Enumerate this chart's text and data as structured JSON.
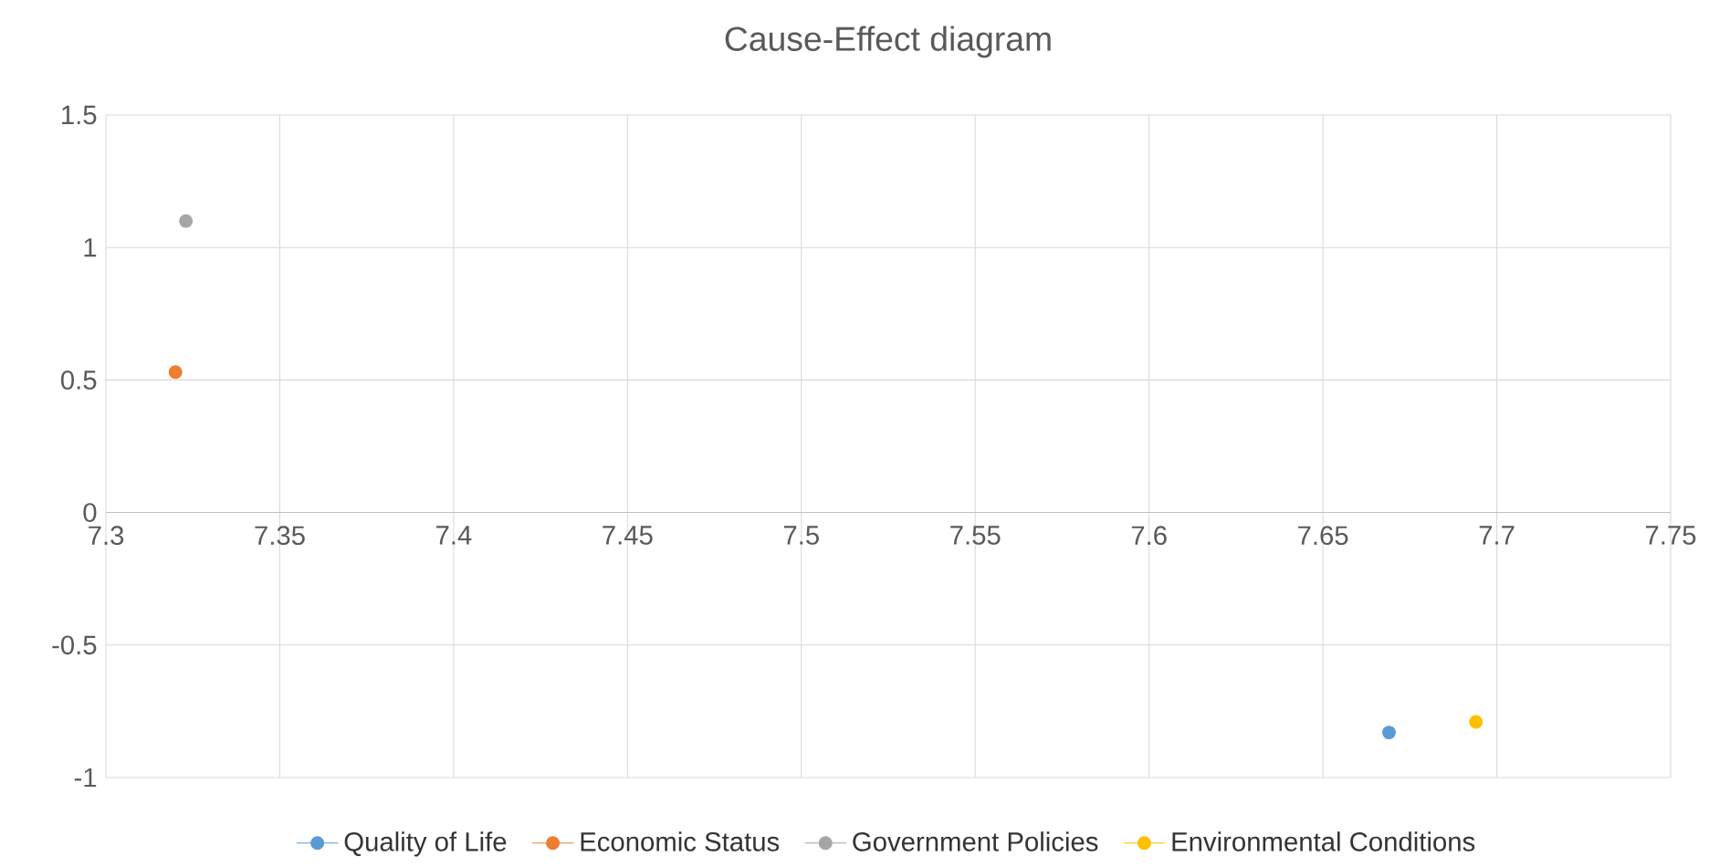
{
  "chart_data": {
    "type": "scatter",
    "title": "Cause-Effect diagram",
    "series": [
      {
        "name": "Quality of Life",
        "color": "#5b9bd5",
        "x": [
          7.669
        ],
        "values": [
          -0.83
        ]
      },
      {
        "name": "Economic Status",
        "color": "#ed7d31",
        "x": [
          7.32
        ],
        "values": [
          0.53
        ]
      },
      {
        "name": "Government Policies",
        "color": "#a5a5a5",
        "x": [
          7.323
        ],
        "values": [
          1.1
        ]
      },
      {
        "name": "Environmental Conditions",
        "color": "#ffc000",
        "x": [
          7.694
        ],
        "values": [
          -0.79
        ]
      }
    ],
    "xlim": [
      7.3,
      7.75
    ],
    "xticks": [
      7.3,
      7.35,
      7.4,
      7.45,
      7.5,
      7.55,
      7.6,
      7.65,
      7.7,
      7.75
    ],
    "ylim": [
      -1,
      1.5
    ],
    "yticks": [
      -1,
      -0.5,
      0,
      0.5,
      1,
      1.5
    ],
    "grid": true,
    "legend": "bottom",
    "marker": "circle"
  }
}
